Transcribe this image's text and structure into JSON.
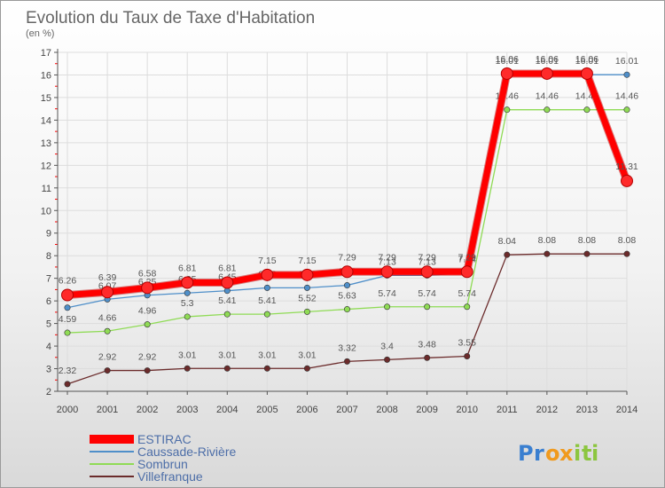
{
  "chart_data": {
    "type": "line",
    "title": "Evolution du Taux de Taxe d'Habitation",
    "subtitle": "(en %)",
    "x": [
      "2000",
      "2001",
      "2002",
      "2003",
      "2004",
      "2005",
      "2006",
      "2007",
      "2008",
      "2009",
      "2010",
      "2011",
      "2012",
      "2013",
      "2014"
    ],
    "ylim": [
      2,
      17
    ],
    "yticks": [
      2,
      3,
      4,
      5,
      6,
      7,
      8,
      9,
      10,
      11,
      12,
      13,
      14,
      15,
      16,
      17
    ],
    "series": [
      {
        "name": "ESTIRAC",
        "color": "#ff0000",
        "values": [
          6.26,
          6.39,
          6.58,
          6.81,
          6.81,
          7.15,
          7.15,
          7.29,
          7.29,
          7.29,
          7.29,
          16.06,
          16.06,
          16.06,
          11.31
        ],
        "labels": [
          "6.26",
          "6.39",
          "6.58",
          "6.81",
          "6.81",
          "7.15",
          "7.15",
          "7.29",
          "7.29",
          "7.29",
          "7.29",
          "16.06",
          "16.06",
          "16.06",
          "11.31"
        ]
      },
      {
        "name": "Caussade-Rivière",
        "color": "#4f8fc9",
        "values": [
          5.7,
          6.07,
          6.25,
          6.35,
          6.45,
          6.58,
          6.58,
          6.69,
          7.13,
          7.13,
          7.24,
          16.01,
          16.01,
          16.01,
          16.01
        ],
        "labels": [
          "",
          "6.07",
          "6.25",
          "6.35",
          "6.45",
          "6.58",
          "6.58",
          "6.69",
          "7.13",
          "7.13",
          "7.24",
          "16.01",
          "16.01",
          "16.01",
          "16.01"
        ]
      },
      {
        "name": "Sombrun",
        "color": "#8fdb55",
        "values": [
          4.59,
          4.66,
          4.96,
          5.3,
          5.41,
          5.41,
          5.52,
          5.63,
          5.74,
          5.74,
          5.74,
          14.46,
          14.46,
          14.46,
          14.46
        ],
        "labels": [
          "4.59",
          "4.66",
          "4.96",
          "5.3",
          "5.41",
          "5.41",
          "5.52",
          "5.63",
          "5.74",
          "5.74",
          "5.74",
          "14.46",
          "14.46",
          "14.46",
          "14.46"
        ]
      },
      {
        "name": "Villefranque",
        "color": "#6b2b2b",
        "values": [
          2.32,
          2.92,
          2.92,
          3.01,
          3.01,
          3.01,
          3.01,
          3.32,
          3.4,
          3.48,
          3.55,
          8.04,
          8.08,
          8.08,
          8.08
        ],
        "labels": [
          "2.32",
          "2.92",
          "2.92",
          "3.01",
          "3.01",
          "3.01",
          "3.01",
          "3.32",
          "3.4",
          "3.48",
          "3.55",
          "8.04",
          "8.08",
          "8.08",
          "8.08"
        ]
      }
    ],
    "legend": "bottom-left"
  },
  "watermark": "Proxiti",
  "colors": {
    "grid": "#dddddd",
    "axis": "#555555",
    "title": "#666666",
    "legend_text": "#4d6ea8",
    "axis_tick_red": "#ff0000"
  }
}
